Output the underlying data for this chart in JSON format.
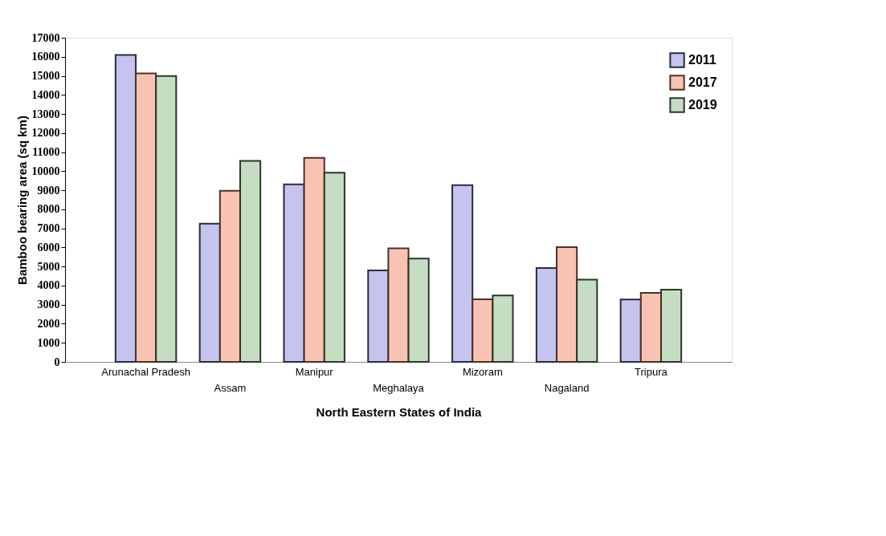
{
  "chart_data": {
    "type": "bar",
    "xlabel": "North Eastern States of India",
    "ylabel": "Bamboo bearing area (sq km)",
    "categories": [
      "Arunachal Pradesh",
      "Assam",
      "Manipur",
      "Meghalaya",
      "Mizoram",
      "Nagaland",
      "Tripura"
    ],
    "series": [
      {
        "name": "2011",
        "color": "#c4c4ee",
        "values": [
          16100,
          7250,
          9310,
          4800,
          9270,
          4920,
          3270
        ]
      },
      {
        "name": "2017",
        "color": "#f9c3b3",
        "values": [
          15130,
          8970,
          10700,
          5950,
          3280,
          6020,
          3620
        ]
      },
      {
        "name": "2019",
        "color": "#c6ddc4",
        "values": [
          14990,
          10540,
          9920,
          5420,
          3480,
          4310,
          3790
        ]
      }
    ],
    "ylim": [
      0,
      17000
    ],
    "yticks": [
      0,
      1000,
      2000,
      3000,
      4000,
      5000,
      6000,
      7000,
      8000,
      9000,
      10000,
      11000,
      12000,
      13000,
      14000,
      15000,
      16000,
      17000
    ],
    "grid": false,
    "legend": "top right"
  }
}
